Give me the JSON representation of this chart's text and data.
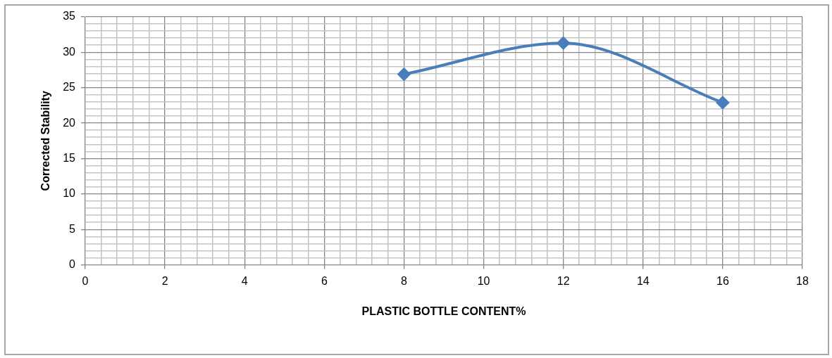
{
  "chart_data": {
    "type": "line",
    "xlabel": "PLASTIC BOTTLE CONTENT%",
    "ylabel": "Corrected Stability",
    "x": [
      8,
      12,
      16
    ],
    "series": [
      {
        "color": "#4a7ebb",
        "values": [
          26.9,
          31.3,
          22.9
        ]
      }
    ],
    "xlim": [
      0,
      18
    ],
    "ylim": [
      0,
      35
    ],
    "xticks": [
      0,
      {
        "value": 0.4,
        "label": null
      },
      {
        "value": 0.8,
        "label": null
      },
      {
        "value": 1.2,
        "label": null
      },
      {
        "value": 1.6,
        "label": null
      },
      2,
      {
        "value": 2.4,
        "label": null
      },
      {
        "value": 2.8,
        "label": null
      },
      {
        "value": 3.2,
        "label": null
      },
      {
        "value": 3.6,
        "label": null
      },
      4,
      {
        "value": 4.4,
        "label": null
      },
      {
        "value": 4.8,
        "label": null
      },
      {
        "value": 5.2,
        "label": null
      },
      {
        "value": 5.6,
        "label": null
      },
      6,
      {
        "value": 6.4,
        "label": null
      },
      {
        "value": 6.8,
        "label": null
      },
      {
        "value": 7.2,
        "label": null
      },
      {
        "value": 7.6,
        "label": null
      },
      8,
      {
        "value": 8.4,
        "label": null
      },
      {
        "value": 8.8,
        "label": null
      },
      {
        "value": 9.2,
        "label": null
      },
      {
        "value": 9.6,
        "label": null
      },
      10,
      {
        "value": 10.4,
        "label": null
      },
      {
        "value": 10.8,
        "label": null
      },
      {
        "value": 11.2,
        "label": null
      },
      {
        "value": 11.6,
        "label": null
      },
      12,
      {
        "value": 12.4,
        "label": null
      },
      {
        "value": 12.8,
        "label": null
      },
      {
        "value": 13.2,
        "label": null
      },
      {
        "value": 13.6,
        "label": null
      },
      14,
      {
        "value": 14.4,
        "label": null
      },
      {
        "value": 14.8,
        "label": null
      },
      {
        "value": 15.2,
        "label": null
      },
      {
        "value": 15.6,
        "label": null
      },
      16,
      {
        "value": 16.4,
        "label": null
      },
      {
        "value": 16.8,
        "label": null
      },
      {
        "value": 17.2,
        "label": null
      },
      {
        "value": 17.6,
        "label": null
      },
      18
    ],
    "yticks": [
      0,
      {
        "value": 1,
        "label": null
      },
      {
        "value": 2,
        "label": null
      },
      {
        "value": 3,
        "label": null
      },
      {
        "value": 4,
        "label": null
      },
      5,
      {
        "value": 6,
        "label": null
      },
      {
        "value": 7,
        "label": null
      },
      {
        "value": 8,
        "label": null
      },
      {
        "value": 9,
        "label": null
      },
      10,
      {
        "value": 11,
        "label": null
      },
      {
        "value": 12,
        "label": null
      },
      {
        "value": 13,
        "label": null
      },
      {
        "value": 14,
        "label": null
      },
      15,
      {
        "value": 16,
        "label": null
      },
      {
        "value": 17,
        "label": null
      },
      {
        "value": 18,
        "label": null
      },
      {
        "value": 19,
        "label": null
      },
      20,
      {
        "value": 21,
        "label": null
      },
      {
        "value": 22,
        "label": null
      },
      {
        "value": 23,
        "label": null
      },
      {
        "value": 24,
        "label": null
      },
      25,
      {
        "value": 26,
        "label": null
      },
      {
        "value": 27,
        "label": null
      },
      {
        "value": 28,
        "label": null
      },
      {
        "value": 29,
        "label": null
      },
      30,
      {
        "value": 31,
        "label": null
      },
      {
        "value": 32,
        "label": null
      },
      {
        "value": 33,
        "label": null
      },
      {
        "value": 34,
        "label": null
      },
      35
    ],
    "grid": true,
    "legend": false,
    "marker": "diamond",
    "line_style": "solid"
  }
}
